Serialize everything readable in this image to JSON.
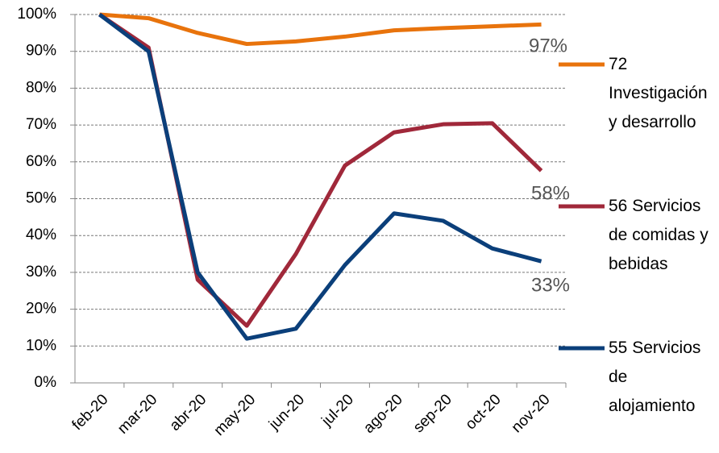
{
  "chart_data": {
    "type": "line",
    "categories": [
      "feb-20",
      "mar-20",
      "abr-20",
      "may-20",
      "jun-20",
      "jul-20",
      "ago-20",
      "sep-20",
      "oct-20",
      "nov-20"
    ],
    "series": [
      {
        "name": "72 Investigación y desarrollo",
        "color": "#e8730c",
        "values": [
          100,
          99,
          95,
          92,
          92.7,
          94,
          95.7,
          96.3,
          96.8,
          97.3
        ],
        "value_labels": [
          null,
          null,
          null,
          null,
          null,
          null,
          null,
          null,
          null,
          "97%"
        ]
      },
      {
        "name": "56 Servicios de comidas y bebidas",
        "color": "#a0283a",
        "values": [
          100,
          91,
          28,
          15.5,
          35,
          59,
          68,
          70.2,
          70.5,
          57.6
        ],
        "value_labels": [
          null,
          null,
          null,
          null,
          null,
          null,
          null,
          null,
          null,
          "58%"
        ]
      },
      {
        "name": "55 Servicios de alojamiento",
        "color": "#0b3f7a",
        "values": [
          100,
          90,
          30,
          12,
          14.7,
          32,
          46,
          44,
          36.5,
          33
        ],
        "value_labels": [
          null,
          null,
          null,
          null,
          null,
          null,
          null,
          null,
          null,
          "33%"
        ]
      }
    ],
    "ylim": [
      0,
      100
    ],
    "yticks": [
      {
        "value": 0,
        "label": "0%"
      },
      {
        "value": 10,
        "label": "10%"
      },
      {
        "value": 20,
        "label": "20%"
      },
      {
        "value": 30,
        "label": "30%"
      },
      {
        "value": 40,
        "label": "40%"
      },
      {
        "value": 50,
        "label": "50%"
      },
      {
        "value": 60,
        "label": "60%"
      },
      {
        "value": 70,
        "label": "70%"
      },
      {
        "value": 80,
        "label": "80%"
      },
      {
        "value": 90,
        "label": "90%"
      },
      {
        "value": 100,
        "label": "100%"
      }
    ],
    "grid": true
  }
}
